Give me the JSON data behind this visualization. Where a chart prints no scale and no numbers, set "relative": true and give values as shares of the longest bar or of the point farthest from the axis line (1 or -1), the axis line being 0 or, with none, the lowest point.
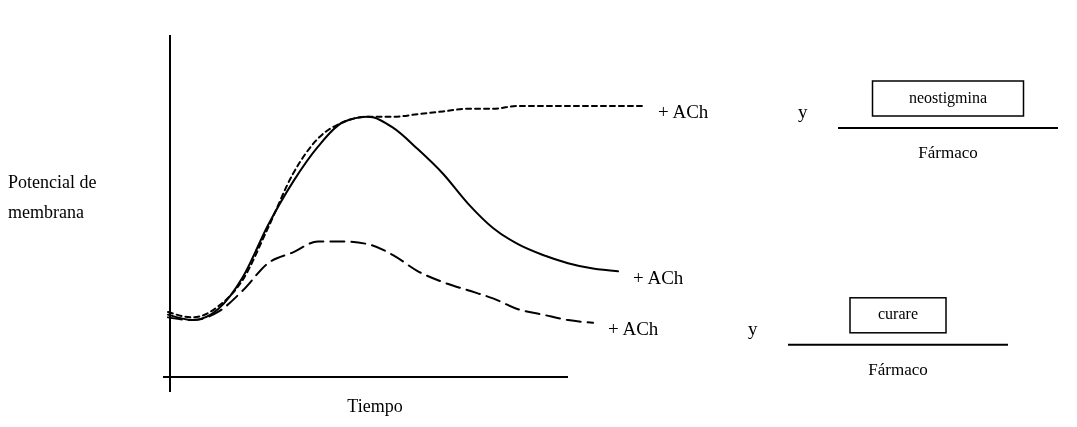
{
  "chart_data": {
    "type": "line",
    "relative": true,
    "xlabel": "Tiempo",
    "ylabel": "Potencial de membrana",
    "categories": [
      null,
      null,
      null,
      null,
      null,
      null,
      null,
      null,
      null,
      null,
      null,
      null,
      null,
      null,
      null,
      null,
      null,
      null,
      null,
      null
    ],
    "series": [
      {
        "name": "+ ACh",
        "color": "#000000",
        "line_style": "dotted",
        "values": [
          0.24,
          0.22,
          0.26,
          0.36,
          0.55,
          0.75,
          0.88,
          0.94,
          0.96,
          0.96,
          0.97,
          0.98,
          0.99,
          0.99,
          1,
          1,
          1,
          1,
          1,
          1
        ]
      },
      {
        "name": "+ ACh",
        "color": "#000000",
        "line_style": "solid",
        "values": [
          0.23,
          0.21,
          0.25,
          0.37,
          0.56,
          0.72,
          0.85,
          0.94,
          0.96,
          0.92,
          0.84,
          0.75,
          0.64,
          0.55,
          0.49,
          0.45,
          0.42,
          0.4,
          0.39,
          null
        ]
      },
      {
        "name": "+ ACh",
        "color": "#000000",
        "line_style": "dashed",
        "values": [
          0.22,
          0.21,
          0.24,
          0.32,
          0.42,
          0.46,
          0.5,
          0.5,
          0.49,
          0.45,
          0.39,
          0.35,
          0.32,
          0.29,
          0.25,
          0.23,
          0.21,
          0.2,
          null,
          null
        ]
      }
    ],
    "annotations": [
      "y",
      "neostigmina",
      "Fármaco",
      "y",
      "curare",
      "Fármaco"
    ]
  }
}
